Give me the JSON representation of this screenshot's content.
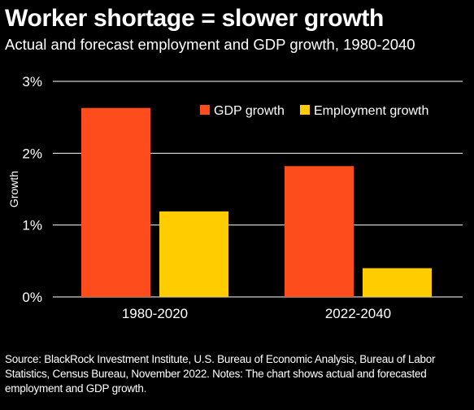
{
  "header": {
    "title": "Worker shortage = slower growth",
    "subtitle": "Actual and forecast employment and GDP growth, 1980-2040"
  },
  "chart_data": {
    "type": "bar",
    "categories": [
      "1980-2020",
      "2022-2040"
    ],
    "series": [
      {
        "name": "GDP growth",
        "color": "#ff4c1c",
        "values": [
          2.63,
          1.82
        ]
      },
      {
        "name": "Employment growth",
        "color": "#ffcc00",
        "values": [
          1.19,
          0.4
        ]
      }
    ],
    "ylabel": "Growth",
    "ylim": [
      0,
      3
    ],
    "yticks": [
      {
        "value": 0,
        "label": "0%"
      },
      {
        "value": 1,
        "label": "1%"
      },
      {
        "value": 2,
        "label": "2%"
      },
      {
        "value": 3,
        "label": "3%"
      }
    ],
    "grid": true,
    "legend": "top-right"
  },
  "footer": {
    "source": "Source: BlackRock Investment Institute, U.S. Bureau of Economic Analysis, Bureau of Labor Statistics, Census Bureau, November 2022. Notes: The chart shows actual and forecasted employment and GDP growth."
  }
}
